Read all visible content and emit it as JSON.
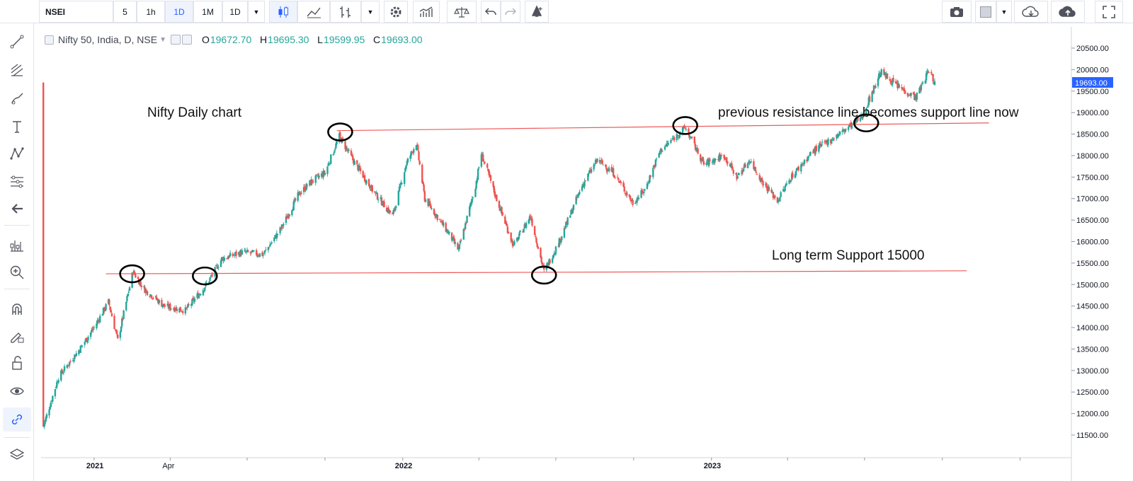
{
  "toolbar": {
    "symbol": "NSEI",
    "intervals": [
      "5",
      "1h",
      "1D",
      "1M",
      "1D"
    ],
    "active_interval": "1D"
  },
  "legend": {
    "title": "Nifty 50, India, D, NSE",
    "open_label": "O",
    "open": "19672.70",
    "high_label": "H",
    "high": "19695.30",
    "low_label": "L",
    "low": "19599.95",
    "close_label": "C",
    "close": "19693.00"
  },
  "annotations": {
    "chart_title": "Nifty  Daily chart",
    "resistance_note": "previous resistance line becomes support line now",
    "support_note": "Long term Support  15000"
  },
  "price_badge": "19693.00",
  "colors": {
    "up": "#26a69a",
    "down": "#ef5350",
    "line": "#f05a5a",
    "accent": "#2962ff"
  },
  "chart_data": {
    "type": "candlestick",
    "title": "",
    "x_ticks": [
      "2021",
      "Apr",
      "2022",
      "2023"
    ],
    "y_ticks": [
      "20500.00",
      "20000.00",
      "19500.00",
      "19000.00",
      "18500.00",
      "18000.00",
      "17500.00",
      "17000.00",
      "16500.00",
      "16000.00",
      "15500.00",
      "15000.00",
      "14500.00",
      "14000.00",
      "13500.00",
      "13000.00",
      "12500.00",
      "12000.00",
      "11500.00"
    ],
    "ylim": [
      11200,
      20900
    ],
    "date_range": [
      "2020-11-01",
      "2023-09-22"
    ],
    "series_close_path": [
      [
        "2020-11-02",
        11700
      ],
      [
        "2020-11-20",
        12850
      ],
      [
        "2020-12-15",
        13500
      ],
      [
        "2021-01-01",
        14000
      ],
      [
        "2021-01-18",
        14600
      ],
      [
        "2021-01-29",
        13700
      ],
      [
        "2021-02-16",
        15300
      ],
      [
        "2021-03-01",
        14900
      ],
      [
        "2021-03-25",
        14500
      ],
      [
        "2021-04-19",
        14400
      ],
      [
        "2021-05-10",
        14900
      ],
      [
        "2021-05-20",
        15200
      ],
      [
        "2021-06-01",
        15600
      ],
      [
        "2021-06-25",
        15750
      ],
      [
        "2021-07-20",
        15700
      ],
      [
        "2021-08-10",
        16300
      ],
      [
        "2021-08-31",
        17100
      ],
      [
        "2021-09-15",
        17400
      ],
      [
        "2021-10-01",
        17600
      ],
      [
        "2021-10-18",
        18450
      ],
      [
        "2021-11-03",
        17900
      ],
      [
        "2021-11-26",
        17200
      ],
      [
        "2021-12-20",
        16600
      ],
      [
        "2022-01-05",
        17800
      ],
      [
        "2022-01-17",
        18300
      ],
      [
        "2022-01-27",
        17000
      ],
      [
        "2022-02-24",
        16200
      ],
      [
        "2022-03-08",
        15800
      ],
      [
        "2022-03-28",
        17300
      ],
      [
        "2022-04-04",
        18050
      ],
      [
        "2022-04-20",
        17100
      ],
      [
        "2022-05-12",
        15900
      ],
      [
        "2022-06-01",
        16600
      ],
      [
        "2022-06-17",
        15300
      ],
      [
        "2022-07-05",
        16000
      ],
      [
        "2022-08-01",
        17300
      ],
      [
        "2022-08-19",
        17900
      ],
      [
        "2022-09-07",
        17600
      ],
      [
        "2022-09-30",
        16900
      ],
      [
        "2022-10-14",
        17200
      ],
      [
        "2022-11-01",
        18100
      ],
      [
        "2022-12-01",
        18650
      ],
      [
        "2022-12-23",
        17800
      ],
      [
        "2023-01-16",
        18000
      ],
      [
        "2023-01-31",
        17500
      ],
      [
        "2023-02-15",
        17900
      ],
      [
        "2023-03-02",
        17400
      ],
      [
        "2023-03-20",
        16950
      ],
      [
        "2023-04-05",
        17500
      ],
      [
        "2023-05-01",
        18100
      ],
      [
        "2023-06-01",
        18500
      ],
      [
        "2023-06-28",
        18900
      ],
      [
        "2023-07-20",
        19950
      ],
      [
        "2023-08-10",
        19600
      ],
      [
        "2023-08-31",
        19350
      ],
      [
        "2023-09-15",
        19990
      ],
      [
        "2023-09-22",
        19693
      ]
    ],
    "trend_lines": [
      {
        "name": "resistance",
        "from": [
          "2021-10-15",
          18580
        ],
        "to": [
          "2023-11-25",
          18760
        ]
      },
      {
        "name": "support",
        "from": [
          "2021-01-15",
          15250
        ],
        "to": [
          "2023-10-30",
          15320
        ]
      }
    ],
    "markers": [
      [
        "2021-02-15",
        15250
      ],
      [
        "2021-05-12",
        15200
      ],
      [
        "2021-10-19",
        18550
      ],
      [
        "2022-06-17",
        15220
      ],
      [
        "2022-12-01",
        18700
      ],
      [
        "2023-07-03",
        18760
      ]
    ]
  }
}
